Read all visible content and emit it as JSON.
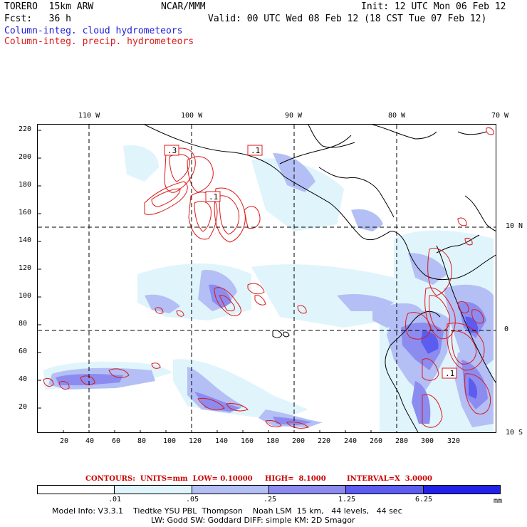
{
  "header": {
    "model": "TORERO  15km ARW",
    "center": "NCAR/MMM",
    "init": "Init: 12 UTC Mon 06 Feb 12",
    "fcst": "Fcst:   36 h",
    "valid": "Valid: 00 UTC Wed 08 Feb 12 (18 CST Tue 07 Feb 12)",
    "field1": "Column-integ. cloud hydrometeors",
    "field2": "Column-integ. precip. hydrometeors"
  },
  "colors": {
    "cloud_field": "#1a1adc",
    "precip_field": "#dc1a1a",
    "coast": "#000000"
  },
  "map": {
    "lon_labels": [
      "110 W",
      "100 W",
      "90 W",
      "80 W",
      "70 W"
    ],
    "lat_labels": [
      "10 N",
      "0",
      "10 S"
    ],
    "y_ticks": [
      "220",
      "200",
      "180",
      "160",
      "140",
      "120",
      "100",
      "80",
      "60",
      "40",
      "20"
    ],
    "x_ticks": [
      "20",
      "40",
      "60",
      "80",
      "100",
      "120",
      "140",
      "160",
      "180",
      "200",
      "220",
      "240",
      "260",
      "280",
      "300",
      "320"
    ],
    "contour_labels": [
      ".3",
      ".1",
      ".1",
      ".1"
    ]
  },
  "contours_info": {
    "units": "CONTOURS:  UNITS=mm  LOW= 0.10000",
    "high": "HIGH=  8.1000",
    "interval": "INTERVAL=X  3.0000"
  },
  "colorbar": {
    "labels": [
      ".01",
      ".05",
      ".25",
      "1.25",
      "6.25"
    ],
    "unit": "mm",
    "colors": [
      "#ffffff",
      "#e0f4fc",
      "#b4bff5",
      "#8c8cf0",
      "#5c5cf0",
      "#2222e6"
    ]
  },
  "footer": {
    "line1": "Model Info: V3.3.1    Tiedtke YSU PBL  Thompson    Noah LSM  15 km,   44 levels,   44 sec",
    "line2": "LW: Godd SW: Goddard DIFF: simple KM: 2D Smagor"
  }
}
